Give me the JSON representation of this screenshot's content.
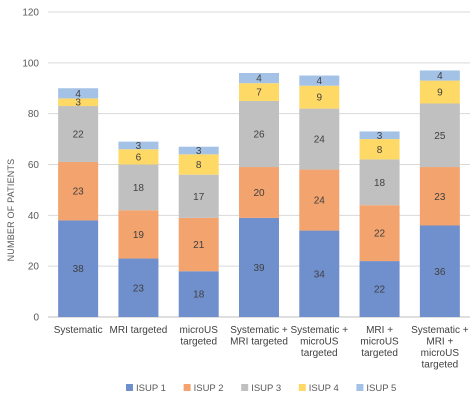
{
  "chart_data": {
    "type": "bar",
    "stacked": true,
    "title": "",
    "xlabel": "",
    "ylabel": "NUMBER OF PATIENTS",
    "ylim": [
      0,
      120
    ],
    "yticks": [
      0,
      20,
      40,
      60,
      80,
      100,
      120
    ],
    "grid": true,
    "legend_position": "bottom",
    "categories": [
      [
        "Systematic"
      ],
      [
        "MRI targeted"
      ],
      [
        "microUS",
        "targeted"
      ],
      [
        "Systematic +",
        "MRI targeted"
      ],
      [
        "Systematic +",
        "microUS",
        "targeted"
      ],
      [
        "MRI +",
        "microUS",
        "targeted"
      ],
      [
        "Systematic +",
        "MRI +",
        "microUS",
        "targeted"
      ]
    ],
    "series": [
      {
        "name": "ISUP 1",
        "color": "#6f8fcd",
        "values": [
          38,
          23,
          18,
          39,
          34,
          22,
          36
        ]
      },
      {
        "name": "ISUP 2",
        "color": "#f2a36e",
        "values": [
          23,
          19,
          21,
          20,
          24,
          22,
          23
        ]
      },
      {
        "name": "ISUP 3",
        "color": "#c0c0c0",
        "values": [
          22,
          18,
          17,
          26,
          24,
          18,
          25
        ]
      },
      {
        "name": "ISUP 4",
        "color": "#ffd966",
        "values": [
          3,
          6,
          8,
          7,
          9,
          8,
          9
        ]
      },
      {
        "name": "ISUP 5",
        "color": "#a4c2e6",
        "values": [
          4,
          3,
          3,
          4,
          4,
          3,
          4
        ]
      }
    ]
  }
}
